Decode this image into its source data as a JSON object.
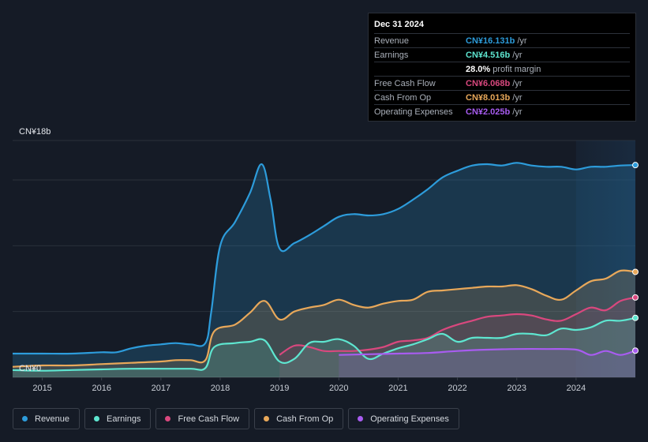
{
  "tooltip": {
    "date": "Dec 31 2024",
    "rows": [
      {
        "label": "Revenue",
        "value": "CN¥16.131b",
        "unit": "/yr",
        "color": "#2d9cdb"
      },
      {
        "label": "Earnings",
        "value": "CN¥4.516b",
        "unit": "/yr",
        "color": "#5ee6d0"
      },
      {
        "label": "",
        "value": "28.0%",
        "unit": "profit margin",
        "color": "#ffffff"
      },
      {
        "label": "Free Cash Flow",
        "value": "CN¥6.068b",
        "unit": "/yr",
        "color": "#d9487e"
      },
      {
        "label": "Cash From Op",
        "value": "CN¥8.013b",
        "unit": "/yr",
        "color": "#e8a85a"
      },
      {
        "label": "Operating Expenses",
        "value": "CN¥2.025b",
        "unit": "/yr",
        "color": "#a85cf0"
      }
    ]
  },
  "legend": [
    {
      "label": "Revenue",
      "color": "#2d9cdb"
    },
    {
      "label": "Earnings",
      "color": "#5ee6d0"
    },
    {
      "label": "Free Cash Flow",
      "color": "#d9487e"
    },
    {
      "label": "Cash From Op",
      "color": "#e8a85a"
    },
    {
      "label": "Operating Expenses",
      "color": "#a85cf0"
    }
  ],
  "chart_data": {
    "type": "area",
    "y_top_label": "CN¥18b",
    "y_bottom_label": "CN¥0",
    "ylim": [
      0,
      18
    ],
    "xlim": [
      2014.5,
      2025.0
    ],
    "x_ticks": [
      "2015",
      "2016",
      "2017",
      "2018",
      "2019",
      "2020",
      "2021",
      "2022",
      "2023",
      "2024"
    ],
    "series": [
      {
        "name": "Revenue",
        "color": "#2d9cdb",
        "points": [
          [
            2014.5,
            1.8
          ],
          [
            2015.0,
            1.8
          ],
          [
            2015.5,
            1.8
          ],
          [
            2016.0,
            1.9
          ],
          [
            2016.25,
            1.9
          ],
          [
            2016.5,
            2.2
          ],
          [
            2016.75,
            2.4
          ],
          [
            2017.0,
            2.5
          ],
          [
            2017.25,
            2.6
          ],
          [
            2017.5,
            2.5
          ],
          [
            2017.75,
            2.6
          ],
          [
            2017.85,
            5.0
          ],
          [
            2018.0,
            10.0
          ],
          [
            2018.25,
            11.8
          ],
          [
            2018.5,
            14.0
          ],
          [
            2018.7,
            16.2
          ],
          [
            2018.85,
            13.5
          ],
          [
            2019.0,
            9.8
          ],
          [
            2019.25,
            10.2
          ],
          [
            2019.5,
            10.8
          ],
          [
            2019.75,
            11.5
          ],
          [
            2020.0,
            12.2
          ],
          [
            2020.25,
            12.4
          ],
          [
            2020.5,
            12.3
          ],
          [
            2020.75,
            12.4
          ],
          [
            2021.0,
            12.8
          ],
          [
            2021.25,
            13.5
          ],
          [
            2021.5,
            14.3
          ],
          [
            2021.75,
            15.2
          ],
          [
            2022.0,
            15.7
          ],
          [
            2022.25,
            16.1
          ],
          [
            2022.5,
            16.2
          ],
          [
            2022.75,
            16.1
          ],
          [
            2023.0,
            16.3
          ],
          [
            2023.25,
            16.1
          ],
          [
            2023.5,
            16.0
          ],
          [
            2023.75,
            16.0
          ],
          [
            2024.0,
            15.8
          ],
          [
            2024.25,
            16.0
          ],
          [
            2024.5,
            16.0
          ],
          [
            2024.75,
            16.1
          ],
          [
            2025.0,
            16.131
          ]
        ]
      },
      {
        "name": "Cash From Op",
        "color": "#e8a85a",
        "points": [
          [
            2014.5,
            0.8
          ],
          [
            2015.0,
            0.9
          ],
          [
            2015.5,
            0.9
          ],
          [
            2016.0,
            1.0
          ],
          [
            2016.5,
            1.1
          ],
          [
            2017.0,
            1.2
          ],
          [
            2017.25,
            1.3
          ],
          [
            2017.5,
            1.3
          ],
          [
            2017.75,
            1.3
          ],
          [
            2017.9,
            3.5
          ],
          [
            2018.25,
            4.0
          ],
          [
            2018.5,
            4.9
          ],
          [
            2018.75,
            5.8
          ],
          [
            2019.0,
            4.4
          ],
          [
            2019.25,
            5.0
          ],
          [
            2019.5,
            5.3
          ],
          [
            2019.75,
            5.5
          ],
          [
            2020.0,
            5.9
          ],
          [
            2020.25,
            5.5
          ],
          [
            2020.5,
            5.3
          ],
          [
            2020.75,
            5.6
          ],
          [
            2021.0,
            5.8
          ],
          [
            2021.25,
            5.9
          ],
          [
            2021.5,
            6.5
          ],
          [
            2021.75,
            6.6
          ],
          [
            2022.0,
            6.7
          ],
          [
            2022.25,
            6.8
          ],
          [
            2022.5,
            6.9
          ],
          [
            2022.75,
            6.9
          ],
          [
            2023.0,
            7.0
          ],
          [
            2023.25,
            6.7
          ],
          [
            2023.5,
            6.2
          ],
          [
            2023.75,
            5.9
          ],
          [
            2024.0,
            6.6
          ],
          [
            2024.25,
            7.3
          ],
          [
            2024.5,
            7.5
          ],
          [
            2024.75,
            8.1
          ],
          [
            2025.0,
            8.013
          ]
        ]
      },
      {
        "name": "Free Cash Flow",
        "color": "#d9487e",
        "points": [
          [
            2019.0,
            1.7
          ],
          [
            2019.25,
            2.4
          ],
          [
            2019.5,
            2.3
          ],
          [
            2019.75,
            2.0
          ],
          [
            2020.0,
            2.0
          ],
          [
            2020.25,
            2.0
          ],
          [
            2020.5,
            2.1
          ],
          [
            2020.75,
            2.3
          ],
          [
            2021.0,
            2.7
          ],
          [
            2021.25,
            2.8
          ],
          [
            2021.5,
            3.0
          ],
          [
            2021.75,
            3.6
          ],
          [
            2022.0,
            4.0
          ],
          [
            2022.25,
            4.3
          ],
          [
            2022.5,
            4.6
          ],
          [
            2022.75,
            4.7
          ],
          [
            2023.0,
            4.8
          ],
          [
            2023.25,
            4.7
          ],
          [
            2023.5,
            4.4
          ],
          [
            2023.75,
            4.3
          ],
          [
            2024.0,
            4.8
          ],
          [
            2024.25,
            5.3
          ],
          [
            2024.5,
            5.1
          ],
          [
            2024.75,
            5.8
          ],
          [
            2025.0,
            6.068
          ]
        ]
      },
      {
        "name": "Earnings",
        "color": "#5ee6d0",
        "points": [
          [
            2014.5,
            0.55
          ],
          [
            2015.0,
            0.5
          ],
          [
            2015.5,
            0.55
          ],
          [
            2016.0,
            0.6
          ],
          [
            2016.5,
            0.65
          ],
          [
            2017.0,
            0.65
          ],
          [
            2017.5,
            0.65
          ],
          [
            2017.75,
            0.7
          ],
          [
            2017.9,
            2.3
          ],
          [
            2018.25,
            2.6
          ],
          [
            2018.5,
            2.7
          ],
          [
            2018.75,
            2.8
          ],
          [
            2019.0,
            1.2
          ],
          [
            2019.25,
            1.4
          ],
          [
            2019.5,
            2.6
          ],
          [
            2019.75,
            2.7
          ],
          [
            2020.0,
            2.9
          ],
          [
            2020.25,
            2.4
          ],
          [
            2020.5,
            1.4
          ],
          [
            2020.75,
            1.8
          ],
          [
            2021.0,
            2.2
          ],
          [
            2021.25,
            2.5
          ],
          [
            2021.5,
            2.9
          ],
          [
            2021.75,
            3.3
          ],
          [
            2022.0,
            2.7
          ],
          [
            2022.25,
            3.0
          ],
          [
            2022.5,
            3.0
          ],
          [
            2022.75,
            3.0
          ],
          [
            2023.0,
            3.3
          ],
          [
            2023.25,
            3.3
          ],
          [
            2023.5,
            3.2
          ],
          [
            2023.75,
            3.7
          ],
          [
            2024.0,
            3.6
          ],
          [
            2024.25,
            3.8
          ],
          [
            2024.5,
            4.3
          ],
          [
            2024.75,
            4.3
          ],
          [
            2025.0,
            4.516
          ]
        ]
      },
      {
        "name": "Operating Expenses",
        "color": "#a85cf0",
        "points": [
          [
            2020.0,
            1.7
          ],
          [
            2020.5,
            1.75
          ],
          [
            2021.0,
            1.8
          ],
          [
            2021.5,
            1.85
          ],
          [
            2022.0,
            2.0
          ],
          [
            2022.5,
            2.1
          ],
          [
            2023.0,
            2.15
          ],
          [
            2023.5,
            2.15
          ],
          [
            2024.0,
            2.1
          ],
          [
            2024.25,
            1.7
          ],
          [
            2024.5,
            2.0
          ],
          [
            2024.75,
            1.7
          ],
          [
            2025.0,
            2.025
          ]
        ]
      }
    ]
  }
}
